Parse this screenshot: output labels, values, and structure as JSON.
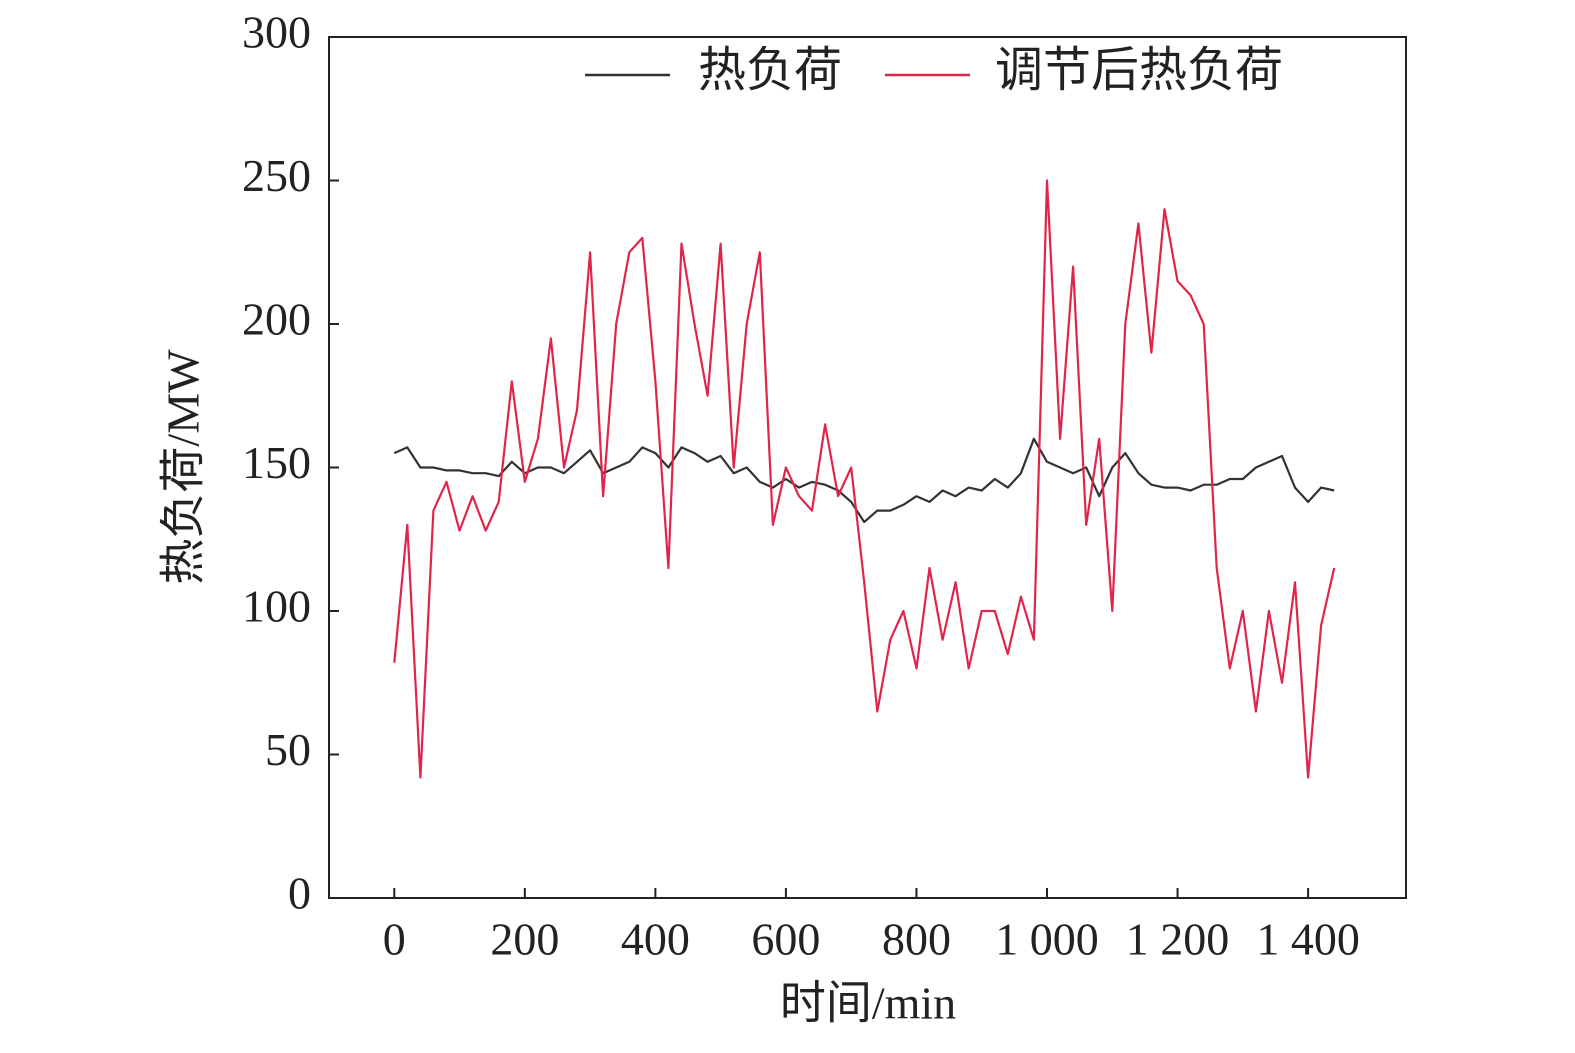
{
  "chart_data": {
    "type": "line",
    "legend": "top-right",
    "xlabel": "时间/min",
    "ylabel": "热负荷/MW",
    "xlim": [
      -100,
      1550
    ],
    "ylim": [
      0,
      300
    ],
    "xticks": [
      0,
      200,
      400,
      600,
      800,
      {
        "value": 1000,
        "label": "1 000"
      },
      {
        "value": 1200,
        "label": "1 200"
      },
      {
        "value": 1400,
        "label": "1 400"
      }
    ],
    "yticks": [
      0,
      50,
      100,
      150,
      200,
      250,
      300
    ],
    "x": [
      0,
      20,
      40,
      60,
      80,
      100,
      120,
      140,
      160,
      180,
      200,
      220,
      240,
      260,
      280,
      300,
      320,
      340,
      360,
      380,
      400,
      420,
      440,
      460,
      480,
      500,
      520,
      540,
      560,
      580,
      600,
      620,
      640,
      660,
      680,
      700,
      720,
      740,
      760,
      780,
      800,
      820,
      840,
      860,
      880,
      900,
      920,
      940,
      960,
      980,
      1000,
      1020,
      1040,
      1060,
      1080,
      1100,
      1120,
      1140,
      1160,
      1180,
      1200,
      1220,
      1240,
      1260,
      1280,
      1300,
      1320,
      1340,
      1360,
      1380,
      1400,
      1420,
      1440
    ],
    "series": [
      {
        "name": "热负荷",
        "color": "#333333",
        "values": [
          155,
          157,
          150,
          150,
          149,
          149,
          148,
          148,
          147,
          152,
          148,
          150,
          150,
          148,
          152,
          156,
          148,
          150,
          152,
          157,
          155,
          150,
          157,
          155,
          152,
          154,
          148,
          150,
          145,
          143,
          146,
          143,
          145,
          144,
          142,
          138,
          131,
          135,
          135,
          137,
          140,
          138,
          142,
          140,
          143,
          142,
          146,
          143,
          148,
          160,
          152,
          150,
          148,
          150,
          140,
          150,
          155,
          148,
          144,
          143,
          143,
          142,
          144,
          144,
          146,
          146,
          150,
          152,
          154,
          143,
          138,
          143,
          142
        ]
      },
      {
        "name": "调节后热负荷",
        "color": "#e0254a",
        "values": [
          82,
          130,
          42,
          135,
          145,
          128,
          140,
          128,
          138,
          180,
          145,
          160,
          195,
          150,
          170,
          225,
          140,
          200,
          225,
          230,
          180,
          115,
          228,
          200,
          175,
          228,
          150,
          200,
          225,
          130,
          150,
          140,
          135,
          165,
          140,
          150,
          110,
          65,
          90,
          100,
          80,
          115,
          90,
          110,
          80,
          100,
          100,
          85,
          105,
          90,
          250,
          160,
          220,
          130,
          160,
          100,
          200,
          235,
          190,
          240,
          215,
          210,
          200,
          115,
          80,
          100,
          65,
          100,
          75,
          110,
          42,
          95,
          115
        ]
      }
    ]
  }
}
